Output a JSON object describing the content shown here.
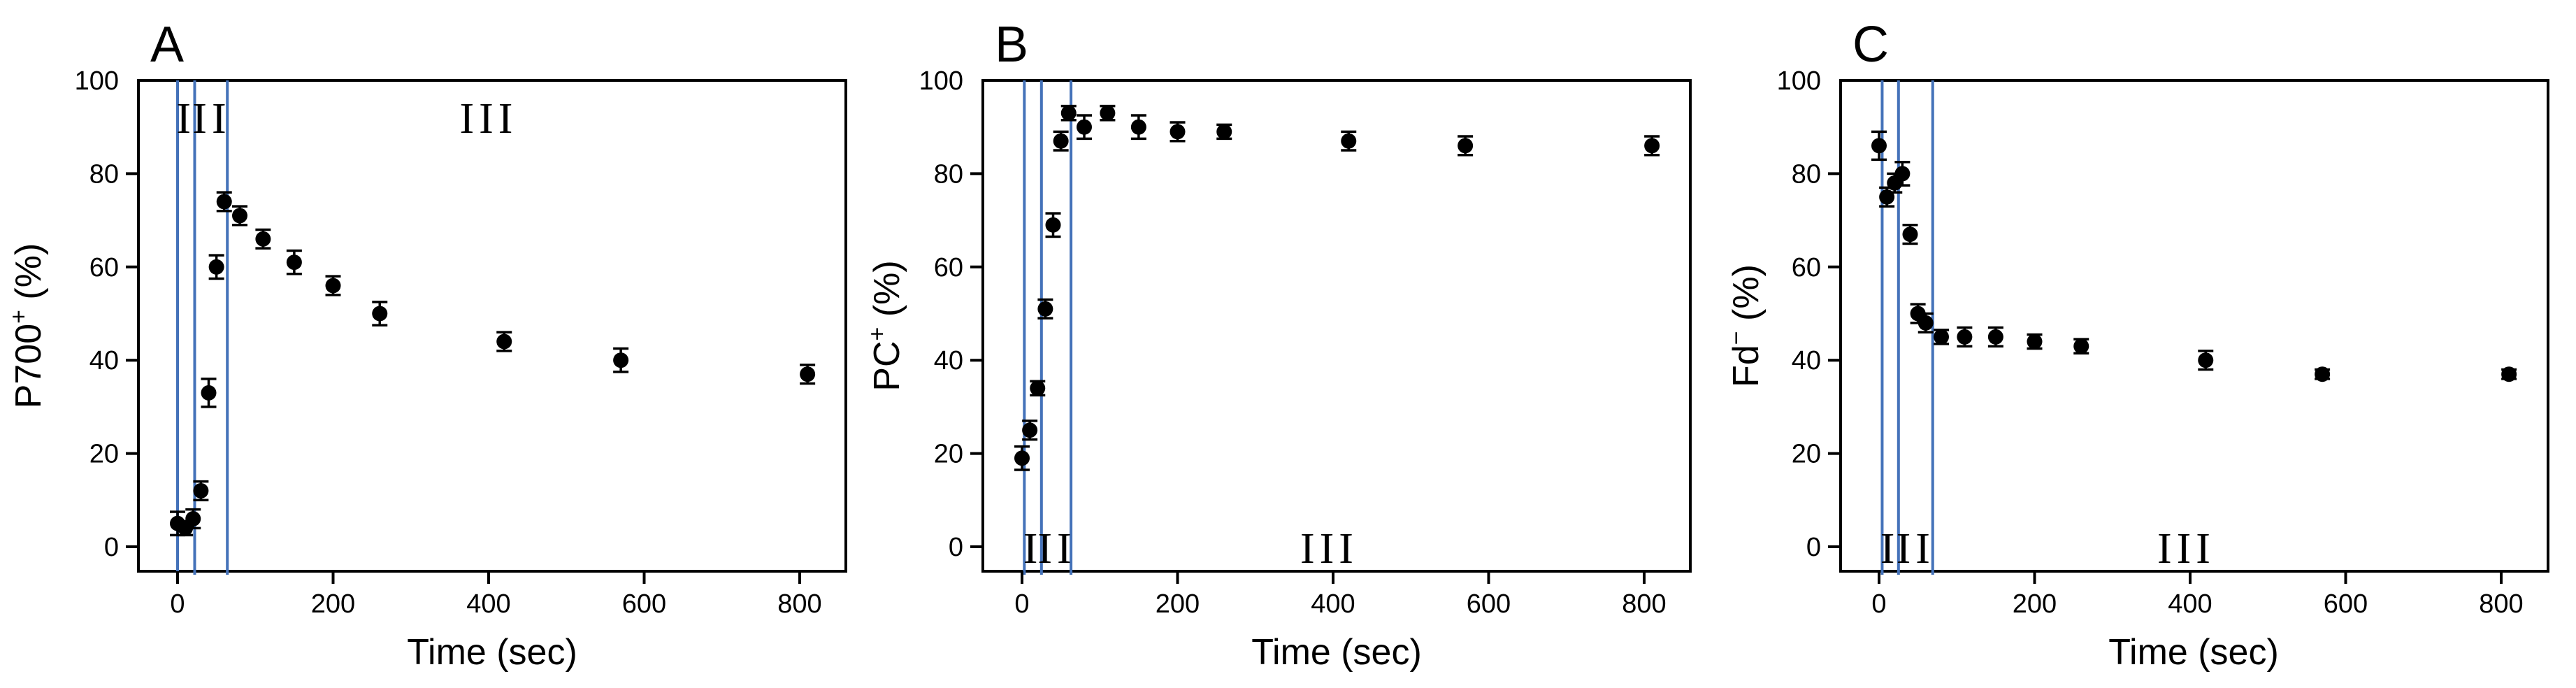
{
  "figure": {
    "background": "#ffffff",
    "axis_color": "#000000",
    "point_color": "#000000",
    "phase_line_color": "#4472b9",
    "xlabel": "Time (sec)",
    "x_ticks": [
      0,
      200,
      400,
      600,
      800
    ],
    "y_ticks": [
      0,
      20,
      40,
      60,
      80,
      100
    ],
    "panels": [
      {
        "letter": "A",
        "ylabel_base": "P700",
        "ylabel_sup": "+",
        "ylabel_rest": " (%)",
        "phase_label_pos": "top",
        "phase_lines_sec": [
          0,
          22,
          64
        ],
        "phase_labels": [
          {
            "text": "I",
            "t": 11
          },
          {
            "text": "II",
            "t": 44
          },
          {
            "text": "III",
            "t": 400
          }
        ],
        "points": [
          {
            "t": 0,
            "v": 5,
            "e": 2.5
          },
          {
            "t": 10,
            "v": 4,
            "e": 1.5
          },
          {
            "t": 20,
            "v": 6,
            "e": 2
          },
          {
            "t": 30,
            "v": 12,
            "e": 2
          },
          {
            "t": 40,
            "v": 33,
            "e": 3
          },
          {
            "t": 50,
            "v": 60,
            "e": 2.5
          },
          {
            "t": 60,
            "v": 74,
            "e": 2
          },
          {
            "t": 80,
            "v": 71,
            "e": 2
          },
          {
            "t": 110,
            "v": 66,
            "e": 2
          },
          {
            "t": 150,
            "v": 61,
            "e": 2.5
          },
          {
            "t": 200,
            "v": 56,
            "e": 2
          },
          {
            "t": 260,
            "v": 50,
            "e": 2.5
          },
          {
            "t": 420,
            "v": 44,
            "e": 2
          },
          {
            "t": 570,
            "v": 40,
            "e": 2.5
          },
          {
            "t": 810,
            "v": 37,
            "e": 2
          }
        ]
      },
      {
        "letter": "B",
        "ylabel_base": "PC",
        "ylabel_sup": "+",
        "ylabel_rest": " (%)",
        "phase_label_pos": "bottom",
        "phase_lines_sec": [
          3,
          25,
          63
        ],
        "phase_labels": [
          {
            "text": "I",
            "t": 14
          },
          {
            "text": "II",
            "t": 45
          },
          {
            "text": "III",
            "t": 395
          }
        ],
        "points": [
          {
            "t": 0,
            "v": 19,
            "e": 2.5
          },
          {
            "t": 10,
            "v": 25,
            "e": 2
          },
          {
            "t": 20,
            "v": 34,
            "e": 1.5
          },
          {
            "t": 30,
            "v": 51,
            "e": 2
          },
          {
            "t": 40,
            "v": 69,
            "e": 2.5
          },
          {
            "t": 50,
            "v": 87,
            "e": 2
          },
          {
            "t": 60,
            "v": 93,
            "e": 1.5
          },
          {
            "t": 80,
            "v": 90,
            "e": 2.5
          },
          {
            "t": 110,
            "v": 93,
            "e": 1.5
          },
          {
            "t": 150,
            "v": 90,
            "e": 2.5
          },
          {
            "t": 200,
            "v": 89,
            "e": 2
          },
          {
            "t": 260,
            "v": 89,
            "e": 1.5
          },
          {
            "t": 420,
            "v": 87,
            "e": 2
          },
          {
            "t": 570,
            "v": 86,
            "e": 2
          },
          {
            "t": 810,
            "v": 86,
            "e": 2
          }
        ]
      },
      {
        "letter": "C",
        "ylabel_base": "Fd",
        "ylabel_sup": "−",
        "ylabel_rest": " (%)",
        "phase_label_pos": "bottom",
        "phase_lines_sec": [
          4,
          25,
          69
        ],
        "phase_labels": [
          {
            "text": "I",
            "t": 14
          },
          {
            "text": "II",
            "t": 47
          },
          {
            "text": "III",
            "t": 395
          }
        ],
        "points": [
          {
            "t": 0,
            "v": 86,
            "e": 3
          },
          {
            "t": 10,
            "v": 75,
            "e": 2
          },
          {
            "t": 20,
            "v": 78,
            "e": 2
          },
          {
            "t": 30,
            "v": 80,
            "e": 2.5
          },
          {
            "t": 40,
            "v": 67,
            "e": 2
          },
          {
            "t": 50,
            "v": 50,
            "e": 2
          },
          {
            "t": 60,
            "v": 48,
            "e": 2
          },
          {
            "t": 80,
            "v": 45,
            "e": 1.5
          },
          {
            "t": 110,
            "v": 45,
            "e": 2
          },
          {
            "t": 150,
            "v": 45,
            "e": 2
          },
          {
            "t": 200,
            "v": 44,
            "e": 1.5
          },
          {
            "t": 260,
            "v": 43,
            "e": 1.5
          },
          {
            "t": 420,
            "v": 40,
            "e": 2
          },
          {
            "t": 570,
            "v": 37,
            "e": 1
          },
          {
            "t": 810,
            "v": 37,
            "e": 1
          }
        ]
      }
    ]
  },
  "chart_data": [
    {
      "type": "scatter",
      "title": "A",
      "xlabel": "Time (sec)",
      "ylabel": "P700+ (%)",
      "xlim": [
        -50,
        850
      ],
      "ylim": [
        0,
        100
      ],
      "x_ticks": [
        0,
        200,
        400,
        600,
        800
      ],
      "y_ticks": [
        0,
        20,
        40,
        60,
        80,
        100
      ],
      "grid": false,
      "marker": "filled-circle-with-error-bars",
      "x": [
        0,
        10,
        20,
        30,
        40,
        50,
        60,
        80,
        110,
        150,
        200,
        260,
        420,
        570,
        810
      ],
      "y": [
        5,
        4,
        6,
        12,
        33,
        60,
        74,
        71,
        66,
        61,
        56,
        50,
        44,
        40,
        37
      ],
      "yerr": [
        2.5,
        1.5,
        2,
        2,
        3,
        2.5,
        2,
        2,
        2,
        2.5,
        2,
        2.5,
        2,
        2.5,
        2
      ],
      "vlines_sec": [
        0,
        22,
        64
      ],
      "annotations": [
        "I",
        "II",
        "III"
      ]
    },
    {
      "type": "scatter",
      "title": "B",
      "xlabel": "Time (sec)",
      "ylabel": "PC+ (%)",
      "xlim": [
        -50,
        850
      ],
      "ylim": [
        0,
        100
      ],
      "x_ticks": [
        0,
        200,
        400,
        600,
        800
      ],
      "y_ticks": [
        0,
        20,
        40,
        60,
        80,
        100
      ],
      "grid": false,
      "marker": "filled-circle-with-error-bars",
      "x": [
        0,
        10,
        20,
        30,
        40,
        50,
        60,
        80,
        110,
        150,
        200,
        260,
        420,
        570,
        810
      ],
      "y": [
        19,
        25,
        34,
        51,
        69,
        87,
        93,
        90,
        93,
        90,
        89,
        89,
        87,
        86,
        86
      ],
      "yerr": [
        2.5,
        2,
        1.5,
        2,
        2.5,
        2,
        1.5,
        2.5,
        1.5,
        2.5,
        2,
        1.5,
        2,
        2,
        2
      ],
      "vlines_sec": [
        3,
        25,
        63
      ],
      "annotations": [
        "I",
        "II",
        "III"
      ]
    },
    {
      "type": "scatter",
      "title": "C",
      "xlabel": "Time (sec)",
      "ylabel": "Fd− (%)",
      "xlim": [
        -50,
        850
      ],
      "ylim": [
        0,
        100
      ],
      "x_ticks": [
        0,
        200,
        400,
        600,
        800
      ],
      "y_ticks": [
        0,
        20,
        40,
        60,
        80,
        100
      ],
      "grid": false,
      "marker": "filled-circle-with-error-bars",
      "x": [
        0,
        10,
        20,
        30,
        40,
        50,
        60,
        80,
        110,
        150,
        200,
        260,
        420,
        570,
        810
      ],
      "y": [
        86,
        75,
        78,
        80,
        67,
        50,
        48,
        45,
        45,
        45,
        44,
        43,
        40,
        37,
        37
      ],
      "yerr": [
        3,
        2,
        2,
        2.5,
        2,
        2,
        2,
        1.5,
        2,
        2,
        1.5,
        1.5,
        2,
        1,
        1
      ],
      "vlines_sec": [
        4,
        25,
        69
      ],
      "annotations": [
        "I",
        "II",
        "III"
      ]
    }
  ]
}
